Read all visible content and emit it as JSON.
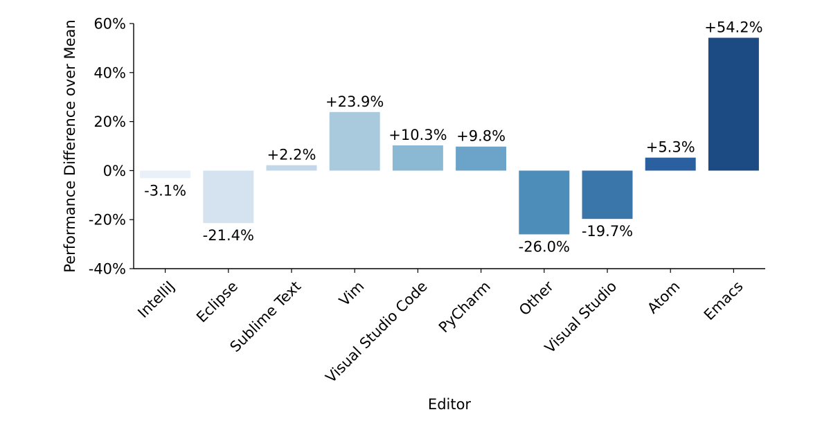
{
  "chart_data": {
    "type": "bar",
    "title": "",
    "xlabel": "Editor",
    "ylabel": "Performance Difference over Mean",
    "ylim": [
      -40,
      60
    ],
    "yticks": [
      -40,
      -20,
      0,
      20,
      40,
      60
    ],
    "ytick_labels": [
      "-40%",
      "-20%",
      "0%",
      "20%",
      "40%",
      "60%"
    ],
    "grid": false,
    "legend": "none",
    "categories": [
      "IntelliJ",
      "Eclipse",
      "Sublime Text",
      "Vim",
      "Visual Studio Code",
      "PyCharm",
      "Other",
      "Visual Studio",
      "Atom",
      "Emacs"
    ],
    "values": [
      -3.1,
      -21.4,
      2.2,
      23.9,
      10.3,
      9.8,
      -26.0,
      -19.7,
      5.3,
      54.2
    ],
    "data_labels": [
      "-3.1%",
      "-21.4%",
      "+2.2%",
      "+23.9%",
      "+10.3%",
      "+9.8%",
      "-26.0%",
      "-19.7%",
      "+5.3%",
      "+54.2%"
    ],
    "colors": [
      "#eaf0f8",
      "#d5e3f0",
      "#c3d7ea",
      "#a9cadd",
      "#8bb8d3",
      "#6ca4c9",
      "#4d8db9",
      "#3a76aa",
      "#2a609f",
      "#1b4b82"
    ]
  }
}
